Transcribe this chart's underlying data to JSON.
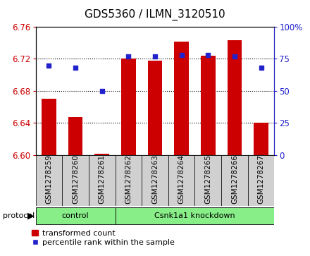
{
  "title": "GDS5360 / ILMN_3120510",
  "samples": [
    "GSM1278259",
    "GSM1278260",
    "GSM1278261",
    "GSM1278262",
    "GSM1278263",
    "GSM1278264",
    "GSM1278265",
    "GSM1278266",
    "GSM1278267"
  ],
  "transformed_count": [
    6.67,
    6.647,
    6.601,
    6.72,
    6.718,
    6.742,
    6.724,
    6.743,
    6.64
  ],
  "percentile_rank": [
    70,
    68,
    50,
    77,
    77,
    78,
    78,
    77,
    68
  ],
  "ylim_left": [
    6.6,
    6.76
  ],
  "ylim_right": [
    0,
    100
  ],
  "yticks_left": [
    6.6,
    6.64,
    6.68,
    6.72,
    6.76
  ],
  "yticks_right": [
    0,
    25,
    50,
    75,
    100
  ],
  "ytick_right_labels": [
    "0",
    "25",
    "50",
    "75",
    "100%"
  ],
  "bar_color": "#cc0000",
  "dot_color": "#2222cc",
  "bar_width": 0.55,
  "control_indices": [
    0,
    1,
    2
  ],
  "knockdown_indices": [
    3,
    4,
    5,
    6,
    7,
    8
  ],
  "control_label": "control",
  "knockdown_label": "Csnk1a1 knockdown",
  "protocol_label": "protocol",
  "legend_bar_label": "transformed count",
  "legend_dot_label": "percentile rank within the sample",
  "group_color": "#88ee88",
  "label_bg_color": "#d0d0d0",
  "xlabel_color": "#cc0000",
  "ylabel_right_color": "#2222cc",
  "title_fontsize": 11,
  "tick_fontsize": 8.5,
  "label_fontsize": 7.5,
  "group_fontsize": 8,
  "legend_fontsize": 8
}
